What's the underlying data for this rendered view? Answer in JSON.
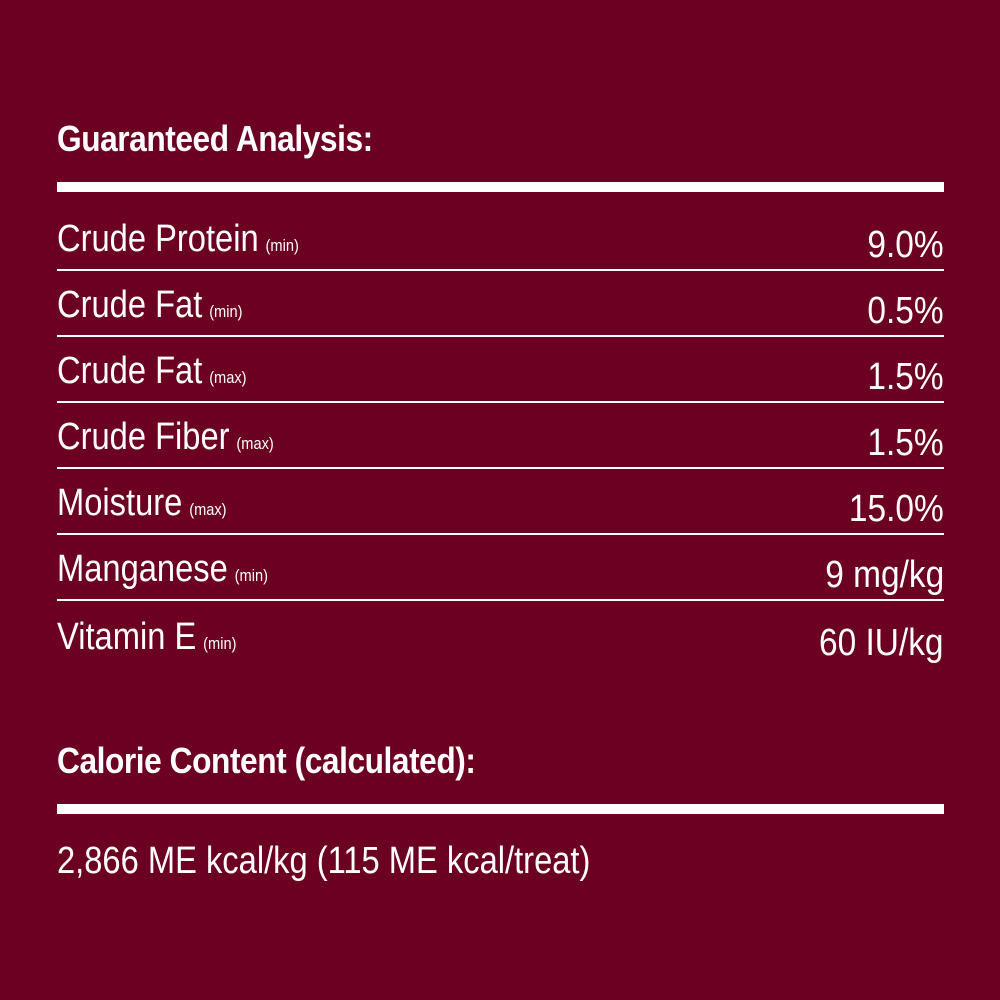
{
  "analysis": {
    "title": "Guaranteed Analysis:",
    "rows": [
      {
        "label": "Crude Protein",
        "qualifier": "(min)",
        "value": "9.0%"
      },
      {
        "label": "Crude Fat",
        "qualifier": "(min)",
        "value": "0.5%"
      },
      {
        "label": "Crude Fat",
        "qualifier": "(max)",
        "value": "1.5%"
      },
      {
        "label": "Crude Fiber",
        "qualifier": "(max)",
        "value": "1.5%"
      },
      {
        "label": "Moisture",
        "qualifier": "(max)",
        "value": "15.0%"
      },
      {
        "label": "Manganese",
        "qualifier": "(min)",
        "value": "9 mg/kg"
      },
      {
        "label": "Vitamin E",
        "qualifier": "(min)",
        "value": "60 IU/kg"
      }
    ]
  },
  "calorie": {
    "title": "Calorie Content (calculated):",
    "text": "2,866 ME kcal/kg (115 ME kcal/treat)"
  }
}
